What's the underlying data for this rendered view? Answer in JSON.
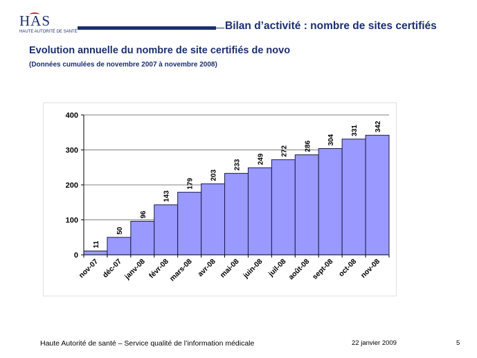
{
  "logo": {
    "letters": "HAS",
    "subtitle": "HAUTE AUTORITÉ DE SANTÉ"
  },
  "header": {
    "title": "Bilan d’activité : nombre de sites certifiés"
  },
  "subtitle": "Evolution annuelle du nombre de site certifiés de novo",
  "note": "(Données cumulées de novembre 2007 à novembre 2008)",
  "colors": {
    "bar": "#9999ff",
    "bar_stroke": "#1a1a4a",
    "brand": "#1c2f6e"
  },
  "chart_data": {
    "type": "bar",
    "title": "",
    "xlabel": "",
    "ylabel": "",
    "categories": [
      "nov-07",
      "déc-07",
      "janv-08",
      "févr-08",
      "mars-08",
      "avr-08",
      "mai-08",
      "juin-08",
      "juil-08",
      "août-08",
      "sept-08",
      "oct-08",
      "nov-08"
    ],
    "values": [
      11,
      50,
      96,
      143,
      179,
      203,
      233,
      249,
      272,
      286,
      304,
      331,
      342
    ],
    "ylim": [
      0,
      400
    ],
    "yticks": [
      0,
      100,
      200,
      300,
      400
    ],
    "grid": true,
    "legend": "none"
  },
  "footer": {
    "left": "Haute Autorité de santé –  Service qualité de l’information médicale",
    "date": "22 janvier 2009",
    "page": "5"
  }
}
